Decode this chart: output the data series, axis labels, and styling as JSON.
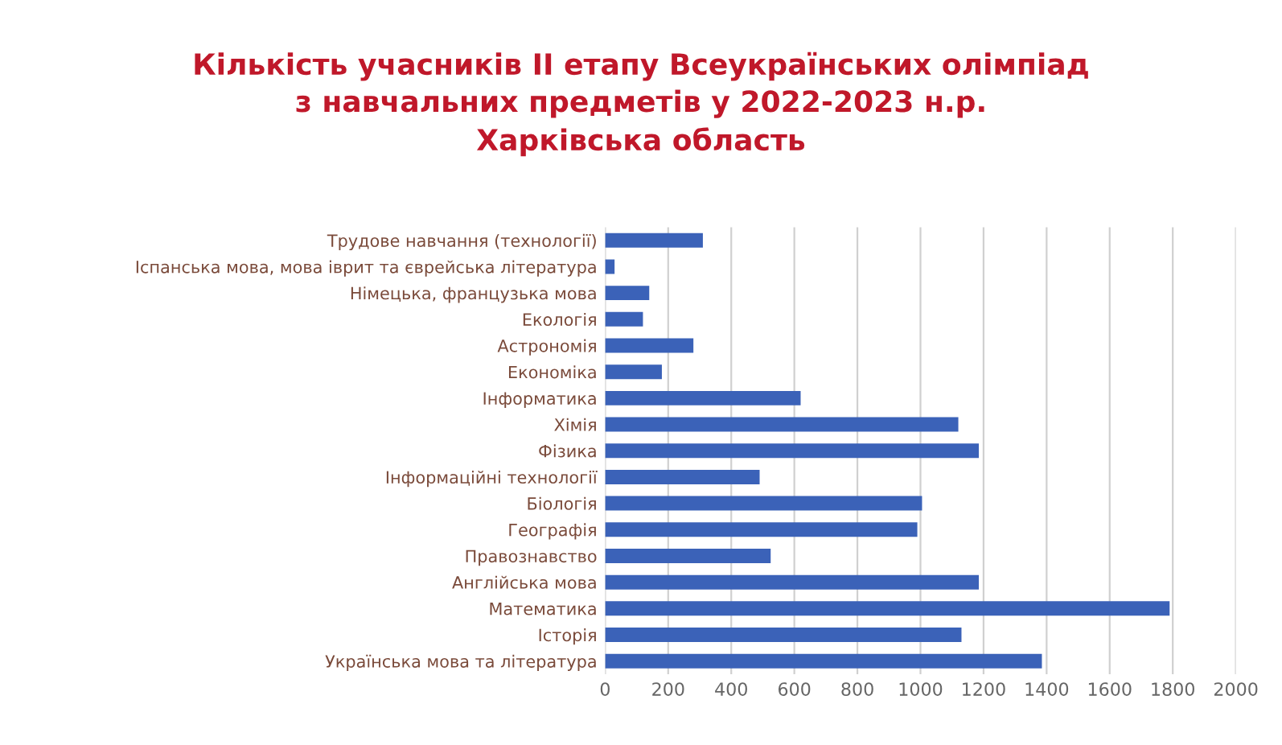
{
  "chart_data": {
    "type": "bar",
    "orientation": "horizontal",
    "title": "Кількість учасників ІІ етапу Всеукраїнських олімпіад\nз навчальних предметів у 2022-2023 н.р.\nХарківська область",
    "categories": [
      "Трудове навчання (технології)",
      "Іспанська мова, мова іврит та єврейська література",
      "Німецька, французька мова",
      "Екологія",
      "Астрономія",
      "Економіка",
      "Інформатика",
      "Хімія",
      "Фізика",
      "Інформаційні технології",
      "Біологія",
      "Географія",
      "Правознавство",
      "Англійська мова",
      "Математика",
      "Історія",
      "Українська мова та література"
    ],
    "values": [
      310,
      30,
      140,
      120,
      280,
      180,
      620,
      1120,
      1185,
      490,
      1005,
      990,
      525,
      1185,
      1790,
      1130,
      1385
    ],
    "color": "#3b62b8",
    "xlim": [
      0,
      2000
    ],
    "xticks": [
      0,
      200,
      400,
      600,
      800,
      1000,
      1200,
      1400,
      1600,
      1800,
      2000
    ],
    "grid": "x"
  }
}
